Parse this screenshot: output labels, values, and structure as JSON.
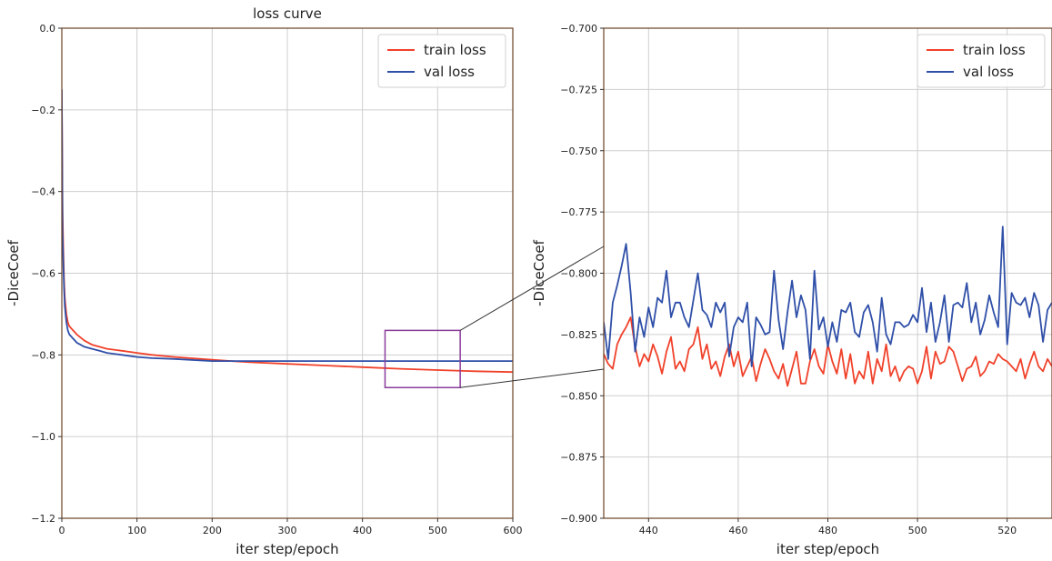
{
  "colors": {
    "train": "#f0412a",
    "val": "#2f4fa8",
    "zoom_box": "#8a3c9a",
    "axis": "#6b4226",
    "grid": "#cfcfcf"
  },
  "chart_data": [
    {
      "type": "line",
      "title": "loss curve",
      "xlabel": "iter step/epoch",
      "ylabel": "-DiceCoef",
      "xlim": [
        0,
        600
      ],
      "ylim": [
        -1.2,
        0.0
      ],
      "xticks": [
        0,
        100,
        200,
        300,
        400,
        500,
        600
      ],
      "yticks": [
        0.0,
        -0.2,
        -0.4,
        -0.6,
        -0.8,
        -1.0,
        -1.2
      ],
      "xtick_labels": [
        "0",
        "100",
        "200",
        "300",
        "400",
        "500",
        "600"
      ],
      "ytick_labels": [
        "0.0",
        "−0.2",
        "−0.4",
        "−0.6",
        "−0.8",
        "−1.0",
        "−1.2"
      ],
      "grid": true,
      "legend_position": "top-right",
      "zoom_box": {
        "x": [
          430,
          530
        ],
        "y": [
          -0.88,
          -0.74
        ]
      },
      "series": [
        {
          "name": "train loss",
          "color_key": "train",
          "x": [
            0,
            1,
            2,
            3,
            4,
            5,
            6,
            8,
            10,
            15,
            20,
            30,
            40,
            50,
            60,
            80,
            100,
            120,
            150,
            200,
            250,
            300,
            350,
            400,
            450,
            500,
            550,
            600
          ],
          "y": [
            -0.18,
            -0.45,
            -0.55,
            -0.62,
            -0.66,
            -0.68,
            -0.7,
            -0.72,
            -0.73,
            -0.74,
            -0.75,
            -0.765,
            -0.775,
            -0.78,
            -0.785,
            -0.79,
            -0.795,
            -0.8,
            -0.805,
            -0.812,
            -0.818,
            -0.822,
            -0.826,
            -0.83,
            -0.834,
            -0.837,
            -0.84,
            -0.842
          ]
        },
        {
          "name": "val loss",
          "color_key": "val",
          "x": [
            0,
            1,
            2,
            3,
            4,
            5,
            6,
            8,
            10,
            15,
            20,
            30,
            40,
            50,
            60,
            80,
            100,
            120,
            150,
            200,
            250,
            300,
            350,
            400,
            450,
            500,
            550,
            600
          ],
          "y": [
            -0.15,
            -0.5,
            -0.58,
            -0.64,
            -0.68,
            -0.7,
            -0.72,
            -0.74,
            -0.75,
            -0.76,
            -0.77,
            -0.78,
            -0.785,
            -0.79,
            -0.795,
            -0.8,
            -0.805,
            -0.808,
            -0.81,
            -0.815,
            -0.815,
            -0.815,
            -0.815,
            -0.815,
            -0.815,
            -0.815,
            -0.815,
            -0.815
          ]
        }
      ]
    },
    {
      "type": "line",
      "title": "",
      "xlabel": "iter step/epoch",
      "ylabel": "-DiceCoef",
      "xlim": [
        430,
        530
      ],
      "ylim": [
        -0.9,
        -0.7
      ],
      "xticks": [
        440,
        460,
        480,
        500,
        520
      ],
      "yticks": [
        -0.7,
        -0.725,
        -0.75,
        -0.775,
        -0.8,
        -0.825,
        -0.85,
        -0.875,
        -0.9
      ],
      "xtick_labels": [
        "440",
        "460",
        "480",
        "500",
        "520"
      ],
      "ytick_labels": [
        "−0.700",
        "−0.725",
        "−0.750",
        "−0.775",
        "−0.800",
        "−0.825",
        "−0.850",
        "−0.875",
        "−0.900"
      ],
      "grid": true,
      "legend_position": "top-right",
      "series": [
        {
          "name": "train loss",
          "color_key": "train",
          "x": [
            430,
            431,
            432,
            433,
            434,
            435,
            436,
            437,
            438,
            439,
            440,
            441,
            442,
            443,
            444,
            445,
            446,
            447,
            448,
            449,
            450,
            451,
            452,
            453,
            454,
            455,
            456,
            457,
            458,
            459,
            460,
            461,
            462,
            463,
            464,
            465,
            466,
            467,
            468,
            469,
            470,
            471,
            472,
            473,
            474,
            475,
            476,
            477,
            478,
            479,
            480,
            481,
            482,
            483,
            484,
            485,
            486,
            487,
            488,
            489,
            490,
            491,
            492,
            493,
            494,
            495,
            496,
            497,
            498,
            499,
            500,
            501,
            502,
            503,
            504,
            505,
            506,
            507,
            508,
            509,
            510,
            511,
            512,
            513,
            514,
            515,
            516,
            517,
            518,
            519,
            520,
            521,
            522,
            523,
            524,
            525,
            526,
            527,
            528,
            529,
            530
          ],
          "y": [
            -0.833,
            -0.837,
            -0.839,
            -0.829,
            -0.825,
            -0.822,
            -0.818,
            -0.83,
            -0.838,
            -0.833,
            -0.836,
            -0.829,
            -0.834,
            -0.841,
            -0.832,
            -0.826,
            -0.839,
            -0.836,
            -0.84,
            -0.831,
            -0.829,
            -0.822,
            -0.835,
            -0.829,
            -0.839,
            -0.836,
            -0.842,
            -0.834,
            -0.829,
            -0.838,
            -0.832,
            -0.842,
            -0.838,
            -0.834,
            -0.844,
            -0.837,
            -0.831,
            -0.835,
            -0.84,
            -0.843,
            -0.837,
            -0.846,
            -0.839,
            -0.832,
            -0.845,
            -0.845,
            -0.836,
            -0.831,
            -0.838,
            -0.841,
            -0.829,
            -0.836,
            -0.841,
            -0.831,
            -0.843,
            -0.833,
            -0.845,
            -0.84,
            -0.843,
            -0.832,
            -0.845,
            -0.835,
            -0.84,
            -0.829,
            -0.842,
            -0.838,
            -0.844,
            -0.84,
            -0.838,
            -0.839,
            -0.845,
            -0.84,
            -0.83,
            -0.843,
            -0.832,
            -0.837,
            -0.836,
            -0.83,
            -0.832,
            -0.838,
            -0.844,
            -0.839,
            -0.838,
            -0.834,
            -0.842,
            -0.84,
            -0.836,
            -0.837,
            -0.833,
            -0.835,
            -0.836,
            -0.838,
            -0.84,
            -0.835,
            -0.843,
            -0.837,
            -0.832,
            -0.838,
            -0.84,
            -0.835,
            -0.838
          ]
        },
        {
          "name": "val loss",
          "color_key": "val",
          "x": [
            430,
            431,
            432,
            433,
            434,
            435,
            436,
            437,
            438,
            439,
            440,
            441,
            442,
            443,
            444,
            445,
            446,
            447,
            448,
            449,
            450,
            451,
            452,
            453,
            454,
            455,
            456,
            457,
            458,
            459,
            460,
            461,
            462,
            463,
            464,
            465,
            466,
            467,
            468,
            469,
            470,
            471,
            472,
            473,
            474,
            475,
            476,
            477,
            478,
            479,
            480,
            481,
            482,
            483,
            484,
            485,
            486,
            487,
            488,
            489,
            490,
            491,
            492,
            493,
            494,
            495,
            496,
            497,
            498,
            499,
            500,
            501,
            502,
            503,
            504,
            505,
            506,
            507,
            508,
            509,
            510,
            511,
            512,
            513,
            514,
            515,
            516,
            517,
            518,
            519,
            520,
            521,
            522,
            523,
            524,
            525,
            526,
            527,
            528,
            529,
            530
          ],
          "y": [
            -0.82,
            -0.835,
            -0.812,
            -0.805,
            -0.797,
            -0.788,
            -0.808,
            -0.832,
            -0.818,
            -0.826,
            -0.814,
            -0.822,
            -0.81,
            -0.812,
            -0.799,
            -0.818,
            -0.812,
            -0.812,
            -0.818,
            -0.822,
            -0.811,
            -0.8,
            -0.815,
            -0.817,
            -0.822,
            -0.812,
            -0.816,
            -0.812,
            -0.834,
            -0.822,
            -0.818,
            -0.82,
            -0.812,
            -0.838,
            -0.818,
            -0.821,
            -0.825,
            -0.824,
            -0.799,
            -0.819,
            -0.831,
            -0.816,
            -0.803,
            -0.818,
            -0.809,
            -0.815,
            -0.835,
            -0.799,
            -0.823,
            -0.818,
            -0.83,
            -0.82,
            -0.828,
            -0.815,
            -0.816,
            -0.812,
            -0.824,
            -0.826,
            -0.816,
            -0.813,
            -0.82,
            -0.832,
            -0.81,
            -0.825,
            -0.829,
            -0.82,
            -0.82,
            -0.822,
            -0.821,
            -0.817,
            -0.82,
            -0.806,
            -0.824,
            -0.812,
            -0.828,
            -0.82,
            -0.809,
            -0.828,
            -0.813,
            -0.812,
            -0.814,
            -0.804,
            -0.82,
            -0.812,
            -0.825,
            -0.819,
            -0.809,
            -0.816,
            -0.822,
            -0.781,
            -0.829,
            -0.808,
            -0.812,
            -0.813,
            -0.81,
            -0.818,
            -0.808,
            -0.813,
            -0.828,
            -0.815,
            -0.812
          ]
        }
      ]
    }
  ]
}
